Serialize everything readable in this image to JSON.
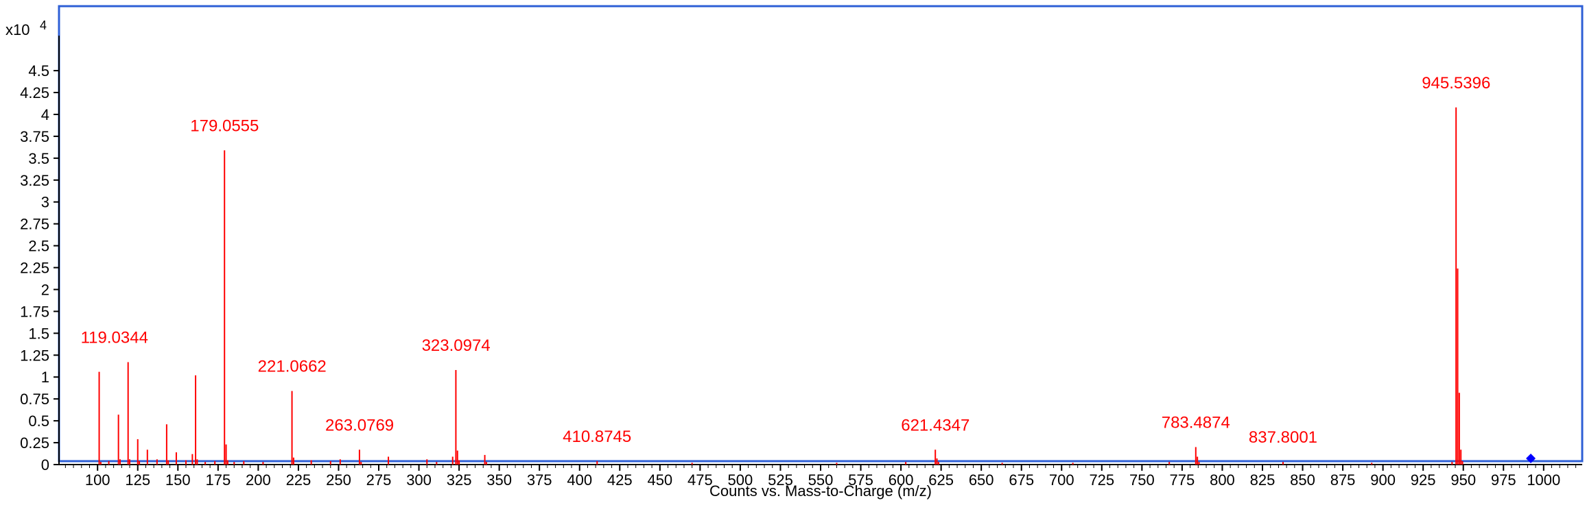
{
  "chart_data": {
    "type": "bar",
    "title": "",
    "xlabel": "Counts vs. Mass-to-Charge (m/z)",
    "ylabel": "",
    "y_multiplier_label": "x10",
    "y_multiplier_exponent": "4",
    "xlim": [
      76,
      1024
    ],
    "ylim": [
      0,
      4.9
    ],
    "x_ticks": [
      100,
      125,
      150,
      175,
      200,
      225,
      250,
      275,
      300,
      325,
      350,
      375,
      400,
      425,
      450,
      475,
      500,
      525,
      550,
      575,
      600,
      625,
      650,
      675,
      700,
      725,
      750,
      775,
      800,
      825,
      850,
      875,
      900,
      925,
      950,
      975,
      1000
    ],
    "y_ticks": [
      0,
      0.25,
      0.5,
      0.75,
      1,
      1.25,
      1.5,
      1.75,
      2,
      2.25,
      2.5,
      2.75,
      3,
      3.25,
      3.5,
      3.75,
      4,
      4.25,
      4.5
    ],
    "y_tick_labels": [
      "0",
      "0.25",
      "0.5",
      "0.75",
      "1",
      "1.25",
      "1.5",
      "1.75",
      "2",
      "2.25",
      "2.5",
      "2.75",
      "3",
      "3.25",
      "3.5",
      "3.75",
      "4",
      "4.25",
      "4.5"
    ],
    "grid": false,
    "colors": {
      "peaks": "#ff0000",
      "frame": "#2e5fd6",
      "marker": "#0000ff"
    },
    "peaks": [
      {
        "mz": 101.0,
        "y": 1.06
      },
      {
        "mz": 102.0,
        "y": 0.03
      },
      {
        "mz": 107.0,
        "y": 0.04
      },
      {
        "mz": 113.0,
        "y": 0.57
      },
      {
        "mz": 114.0,
        "y": 0.06
      },
      {
        "mz": 119.0,
        "y": 1.17
      },
      {
        "mz": 120.0,
        "y": 0.06
      },
      {
        "mz": 125.0,
        "y": 0.29
      },
      {
        "mz": 126.0,
        "y": 0.04
      },
      {
        "mz": 131.0,
        "y": 0.17
      },
      {
        "mz": 137.0,
        "y": 0.06
      },
      {
        "mz": 143.0,
        "y": 0.46
      },
      {
        "mz": 144.0,
        "y": 0.05
      },
      {
        "mz": 149.0,
        "y": 0.14
      },
      {
        "mz": 155.0,
        "y": 0.05
      },
      {
        "mz": 159.0,
        "y": 0.12
      },
      {
        "mz": 161.0,
        "y": 1.02
      },
      {
        "mz": 162.0,
        "y": 0.06
      },
      {
        "mz": 167.0,
        "y": 0.03
      },
      {
        "mz": 173.0,
        "y": 0.04
      },
      {
        "mz": 179.0,
        "y": 3.59
      },
      {
        "mz": 180.0,
        "y": 0.23
      },
      {
        "mz": 181.0,
        "y": 0.05
      },
      {
        "mz": 185.0,
        "y": 0.03
      },
      {
        "mz": 191.0,
        "y": 0.04
      },
      {
        "mz": 203.0,
        "y": 0.03
      },
      {
        "mz": 221.0,
        "y": 0.84
      },
      {
        "mz": 222.0,
        "y": 0.08
      },
      {
        "mz": 233.0,
        "y": 0.05
      },
      {
        "mz": 245.0,
        "y": 0.04
      },
      {
        "mz": 251.0,
        "y": 0.06
      },
      {
        "mz": 263.0,
        "y": 0.17
      },
      {
        "mz": 264.0,
        "y": 0.03
      },
      {
        "mz": 281.0,
        "y": 0.09
      },
      {
        "mz": 305.0,
        "y": 0.06
      },
      {
        "mz": 311.0,
        "y": 0.03
      },
      {
        "mz": 321.0,
        "y": 0.09
      },
      {
        "mz": 323.0,
        "y": 1.08
      },
      {
        "mz": 324.0,
        "y": 0.16
      },
      {
        "mz": 325.0,
        "y": 0.05
      },
      {
        "mz": 341.0,
        "y": 0.11
      },
      {
        "mz": 342.0,
        "y": 0.03
      },
      {
        "mz": 410.9,
        "y": 0.04
      },
      {
        "mz": 470.0,
        "y": 0.02
      },
      {
        "mz": 560.0,
        "y": 0.02
      },
      {
        "mz": 603.0,
        "y": 0.03
      },
      {
        "mz": 621.4,
        "y": 0.17
      },
      {
        "mz": 622.4,
        "y": 0.07
      },
      {
        "mz": 623.4,
        "y": 0.03
      },
      {
        "mz": 663.0,
        "y": 0.02
      },
      {
        "mz": 707.0,
        "y": 0.02
      },
      {
        "mz": 767.0,
        "y": 0.03
      },
      {
        "mz": 783.5,
        "y": 0.2
      },
      {
        "mz": 784.5,
        "y": 0.09
      },
      {
        "mz": 785.5,
        "y": 0.03
      },
      {
        "mz": 837.8,
        "y": 0.03
      },
      {
        "mz": 893.0,
        "y": 0.02
      },
      {
        "mz": 943.0,
        "y": 0.03
      },
      {
        "mz": 945.5,
        "y": 4.08
      },
      {
        "mz": 946.5,
        "y": 2.24
      },
      {
        "mz": 947.5,
        "y": 0.82
      },
      {
        "mz": 948.5,
        "y": 0.17
      },
      {
        "mz": 949.5,
        "y": 0.04
      }
    ],
    "annotations": [
      {
        "text": "945.5396",
        "mz": 945.5396,
        "y": 4.08,
        "dx": 0
      },
      {
        "text": "179.0555",
        "mz": 179.0555,
        "y": 3.59,
        "dx": 0
      },
      {
        "text": "119.0344",
        "mz": 119.0344,
        "y": 1.17,
        "dx": -20
      },
      {
        "text": "323.0974",
        "mz": 323.0974,
        "y": 1.08,
        "dx": 0
      },
      {
        "text": "221.0662",
        "mz": 221.0662,
        "y": 0.84,
        "dx": 0
      },
      {
        "text": "263.0769",
        "mz": 263.0769,
        "y": 0.17,
        "dx": 0
      },
      {
        "text": "410.8745",
        "mz": 410.8745,
        "y": 0.04,
        "dx": 0
      },
      {
        "text": "621.4347",
        "mz": 621.4347,
        "y": 0.17,
        "dx": 0
      },
      {
        "text": "783.4874",
        "mz": 783.4874,
        "y": 0.2,
        "dx": 0
      },
      {
        "text": "837.8001",
        "mz": 837.8001,
        "y": 0.03,
        "dx": 0
      }
    ],
    "precursor_marker": {
      "mz": 992,
      "y": 0.07,
      "shape": "diamond"
    }
  }
}
